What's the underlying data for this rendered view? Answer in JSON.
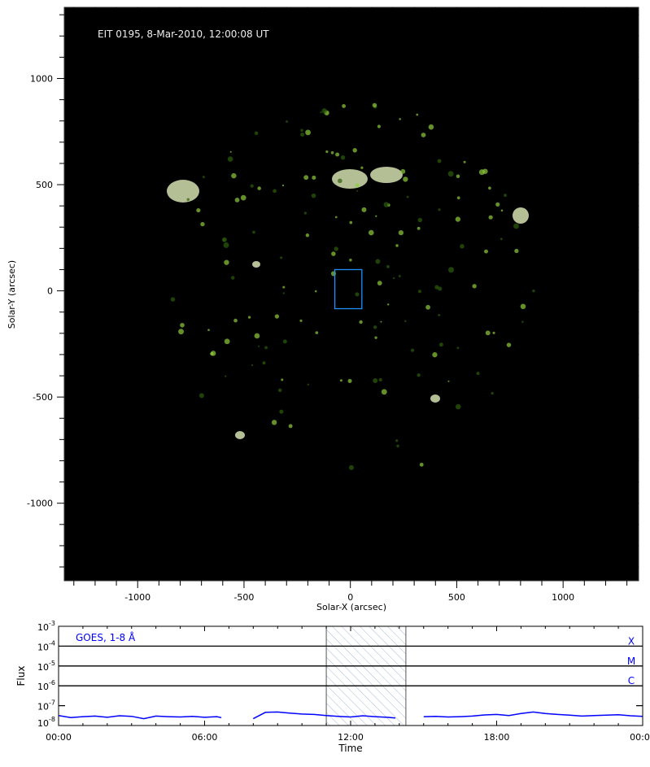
{
  "chart_data": [
    {
      "type": "image",
      "title": "EIT 0195, 8-Mar-2010, 12:00:08 UT",
      "xlabel": "Solar-X (arcsec)",
      "ylabel": "Solar-Y (arcsec)",
      "xlim": [
        -1345,
        1355
      ],
      "ylim": [
        -1365,
        1335
      ],
      "xticks": [
        -1000,
        -500,
        0,
        500,
        1000
      ],
      "yticks": [
        -1000,
        -500,
        0,
        500,
        1000
      ],
      "solar_radius_arcsec": 965,
      "colormap": "green (EIT 195)",
      "roi_box": {
        "x": [
          -73,
          54
        ],
        "y": [
          -84,
          100
        ],
        "color": "#1e90ff"
      }
    },
    {
      "type": "line",
      "legend": "GOES, 1-8 Å",
      "xlabel": "Time",
      "ylabel": "Flux",
      "xticks": [
        "00:00",
        "06:00",
        "12:00",
        "18:00",
        "00:00"
      ],
      "xlim_hours": [
        0,
        24
      ],
      "yscale": "log",
      "ylim": [
        1e-08,
        0.001
      ],
      "yticks": [
        "10^-8",
        "10^-7",
        "10^-6",
        "10^-5",
        "10^-4",
        "10^-3"
      ],
      "class_lines": [
        {
          "label": "X",
          "value": 0.0001
        },
        {
          "label": "M",
          "value": 1e-05
        },
        {
          "label": "C",
          "value": 1e-06
        }
      ],
      "shaded_interval_hours": [
        11.0,
        14.27
      ],
      "series_color": "#0000ff",
      "hours": [
        0,
        0.5,
        1,
        1.5,
        2,
        2.5,
        3,
        3.5,
        4,
        4.5,
        5,
        5.5,
        6,
        6.5,
        6.69,
        7.85,
        8,
        8.5,
        9,
        9.5,
        10,
        10.5,
        11,
        11.5,
        12,
        12.5,
        13,
        13.5,
        13.84,
        14.74,
        15,
        15.5,
        16,
        16.5,
        17,
        17.5,
        18,
        18.5,
        19,
        19.5,
        20,
        20.5,
        21,
        21.5,
        22,
        22.5,
        23,
        23.5,
        24
      ],
      "flux": [
        3.2e-08,
        2.5e-08,
        2.8e-08,
        3e-08,
        2.6e-08,
        3.1e-08,
        2.9e-08,
        2.2e-08,
        3e-08,
        2.8e-08,
        2.7e-08,
        2.9e-08,
        2.6e-08,
        2.8e-08,
        2.5e-08,
        null,
        2.2e-08,
        4.6e-08,
        4.8e-08,
        4.2e-08,
        3.8e-08,
        3.6e-08,
        3.2e-08,
        2.9e-08,
        2.7e-08,
        3.1e-08,
        2.8e-08,
        2.6e-08,
        2.4e-08,
        null,
        2.8e-08,
        2.9e-08,
        2.7e-08,
        2.8e-08,
        3e-08,
        3.4e-08,
        3.6e-08,
        3.2e-08,
        4e-08,
        4.8e-08,
        4e-08,
        3.6e-08,
        3.3e-08,
        3e-08,
        3.2e-08,
        3.3e-08,
        3.5e-08,
        3.1e-08,
        2.9e-08
      ]
    }
  ]
}
